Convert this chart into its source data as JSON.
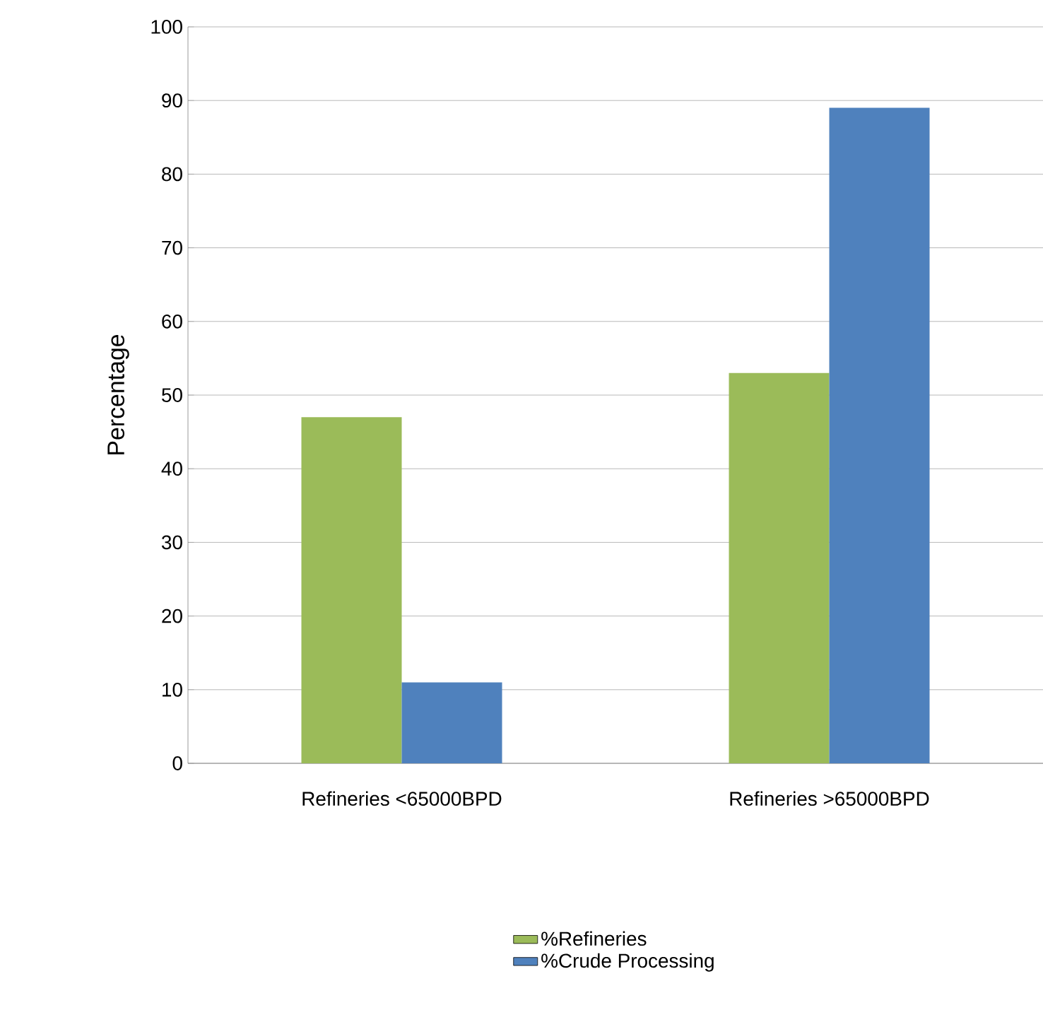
{
  "chart_data": {
    "type": "bar",
    "ylabel": "Percentage",
    "categories": [
      "Refineries <65000BPD",
      "Refineries >65000BPD"
    ],
    "series": [
      {
        "name": "%Refineries",
        "color": "#9bbb59",
        "values": [
          47,
          53
        ]
      },
      {
        "name": "%Crude Processing",
        "color": "#4f81bd",
        "values": [
          11,
          89
        ]
      }
    ],
    "ylim": [
      0,
      100
    ],
    "yticks": [
      0,
      10,
      20,
      30,
      40,
      50,
      60,
      70,
      80,
      90,
      100
    ],
    "grid": "y",
    "legend": "bottom"
  }
}
